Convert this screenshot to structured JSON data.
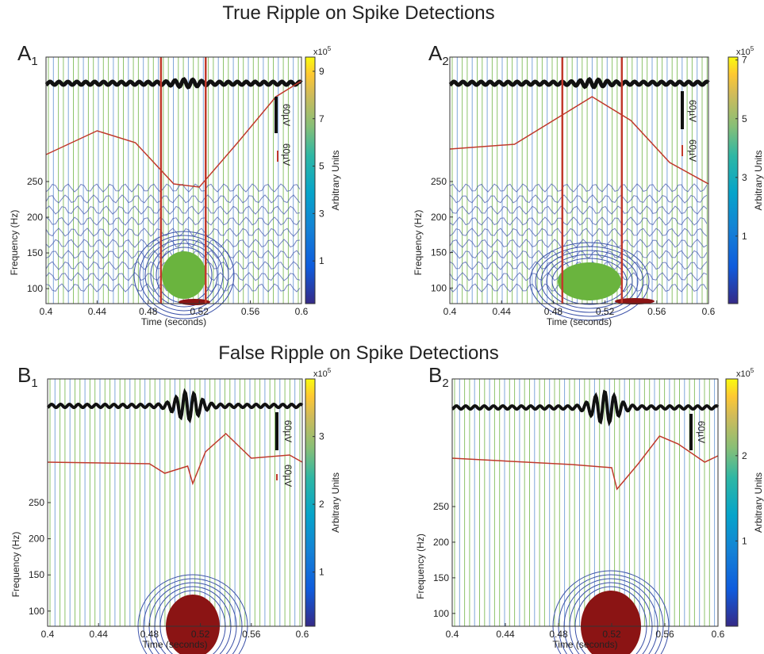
{
  "sections": [
    "True Ripple on Spike Detections",
    "False Ripple on Spike Detections"
  ],
  "chart_data": [
    {
      "type": "spectrogram",
      "panel": "A",
      "panel_sub": "1",
      "xlabel": "Time (seconds)",
      "ylabel": "Frequency (Hz)",
      "xlim": [
        0.4,
        0.6
      ],
      "xticks": [
        0.4,
        0.44,
        0.48,
        0.52,
        0.56,
        0.6
      ],
      "ylim": [
        79,
        250
      ],
      "yticks": [
        100,
        150,
        200,
        250
      ],
      "clim": [
        -0.8,
        9.6
      ],
      "cticks": [
        1,
        3,
        5,
        7,
        9
      ],
      "colorbar_base": "x10",
      "colorbar_exp": "5",
      "colorbar_label": "Arbitrary Units",
      "detection_bounds": [
        0.49,
        0.525
      ],
      "scalebar_labels": [
        "60µV",
        "60µV"
      ]
    },
    {
      "type": "spectrogram",
      "panel": "A",
      "panel_sub": "2",
      "xlabel": "Time (seconds)",
      "ylabel": "Frequency (Hz)",
      "xlim": [
        0.4,
        0.6
      ],
      "xticks": [
        0.4,
        0.44,
        0.48,
        0.52,
        0.56,
        0.6
      ],
      "ylim": [
        78,
        250
      ],
      "yticks": [
        100,
        150,
        200,
        250
      ],
      "clim": [
        -1.3,
        7.1
      ],
      "cticks": [
        1,
        3,
        5,
        7
      ],
      "colorbar_base": "x10",
      "colorbar_exp": "5",
      "colorbar_label": "Arbitrary Units",
      "detection_bounds": [
        0.487,
        0.533
      ],
      "scalebar_labels": [
        "60µV",
        "60µV"
      ]
    },
    {
      "type": "spectrogram",
      "panel": "B",
      "panel_sub": "1",
      "xlabel": "Time (seconds)",
      "ylabel": "Frequency (Hz)",
      "xlim": [
        0.4,
        0.6
      ],
      "xticks": [
        0.4,
        0.44,
        0.48,
        0.52,
        0.56,
        0.6
      ],
      "ylim": [
        79,
        250
      ],
      "yticks": [
        100,
        150,
        200,
        250
      ],
      "clim": [
        0.2,
        3.85
      ],
      "cticks": [
        1,
        2,
        3
      ],
      "colorbar_base": "x10",
      "colorbar_exp": "5",
      "colorbar_label": "Arbitrary Units",
      "scalebar_labels": [
        "60µV",
        "60µV"
      ]
    },
    {
      "type": "spectrogram",
      "panel": "B",
      "panel_sub": "2",
      "xlabel": "Time (seconds)",
      "ylabel": "Frequency (Hz)",
      "xlim": [
        0.4,
        0.6
      ],
      "xticks": [
        0.4,
        0.44,
        0.48,
        0.52,
        0.56,
        0.6
      ],
      "ylim": [
        82,
        250
      ],
      "yticks": [
        100,
        150,
        200,
        250
      ],
      "clim": [
        0,
        2.9
      ],
      "cticks": [
        1,
        2
      ],
      "colorbar_base": "x10",
      "colorbar_exp": "5",
      "colorbar_label": "Arbitrary Units",
      "scalebar_labels": [
        "60µV"
      ]
    }
  ]
}
